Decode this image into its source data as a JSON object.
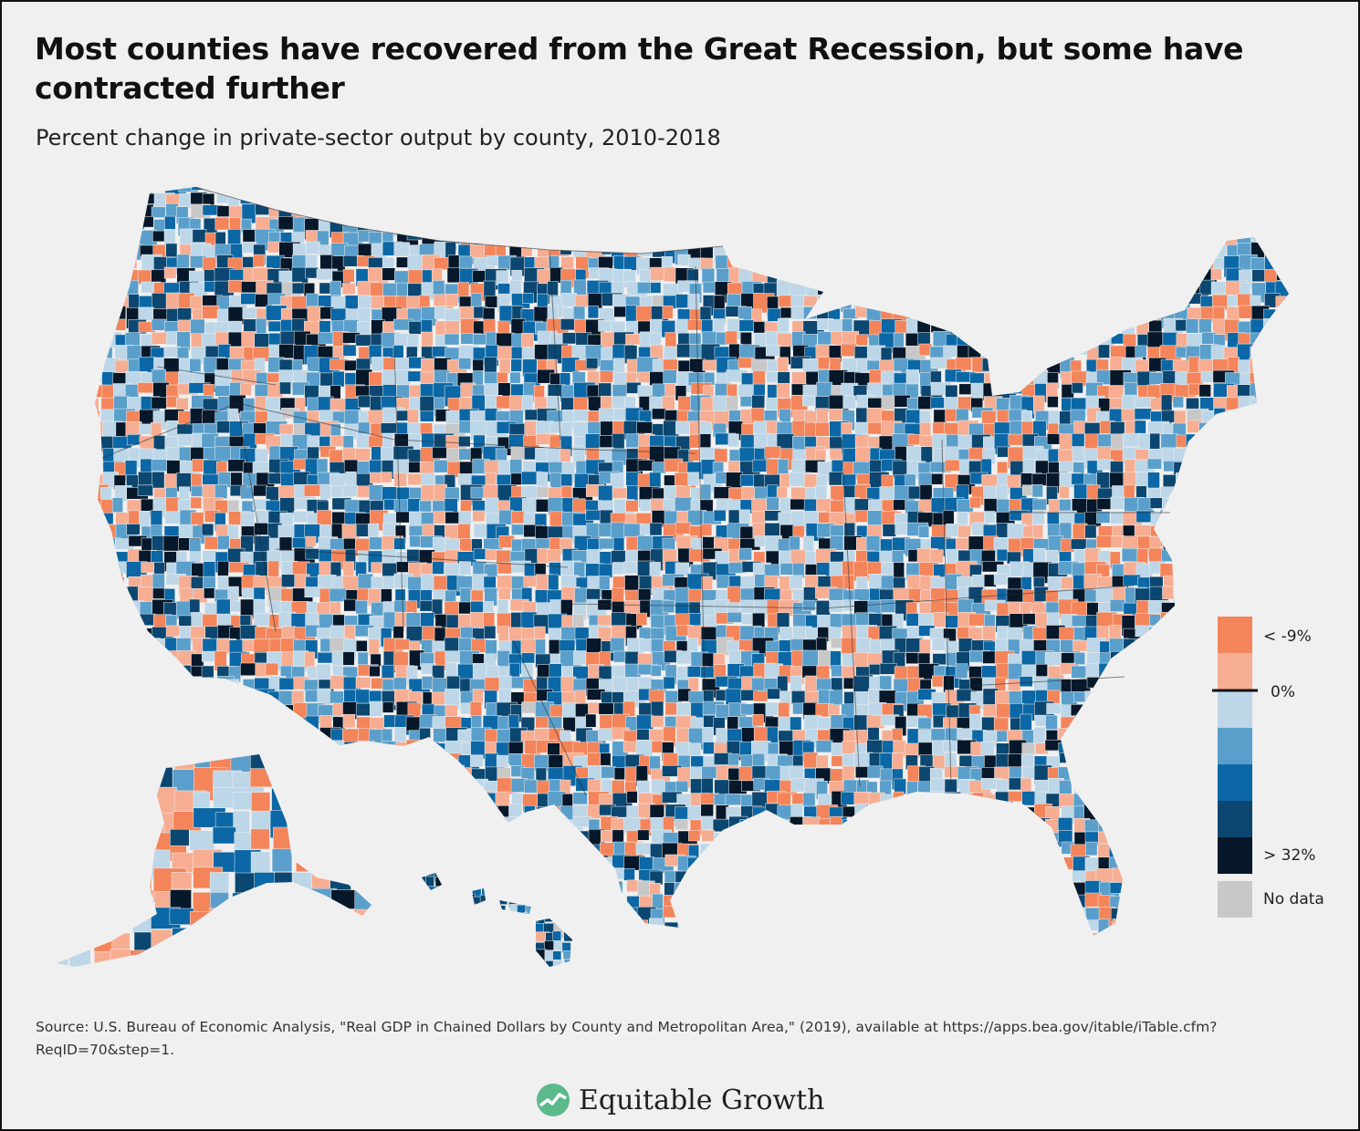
{
  "title": "Most counties have recovered from the Great Recession, but some have contracted further",
  "subtitle": "Percent change in private-sector output by county, 2010-2018",
  "legend": {
    "label_top": "< -9%",
    "label_zero": "0%",
    "label_bottom": "> 32%",
    "label_nodata": "No data",
    "colors": {
      "neg_strong": "#f4845a",
      "neg_mild": "#f7ad92",
      "pos_1": "#bdd7e8",
      "pos_2": "#5a9fcb",
      "pos_3": "#0b67a5",
      "pos_4": "#0b4770",
      "pos_5": "#06182a",
      "no_data": "#c8c8c8"
    }
  },
  "source_text": "Source: U.S. Bureau of Economic Analysis, \"Real GDP in Chained Dollars by County and Metropolitan Area,\" (2019), available at https://apps.bea.gov/itable/iTable.cfm?ReqID=70&step=1.",
  "brand": {
    "name": "Equitable Growth",
    "logo_icon": "equitable-growth-logo-icon"
  }
}
